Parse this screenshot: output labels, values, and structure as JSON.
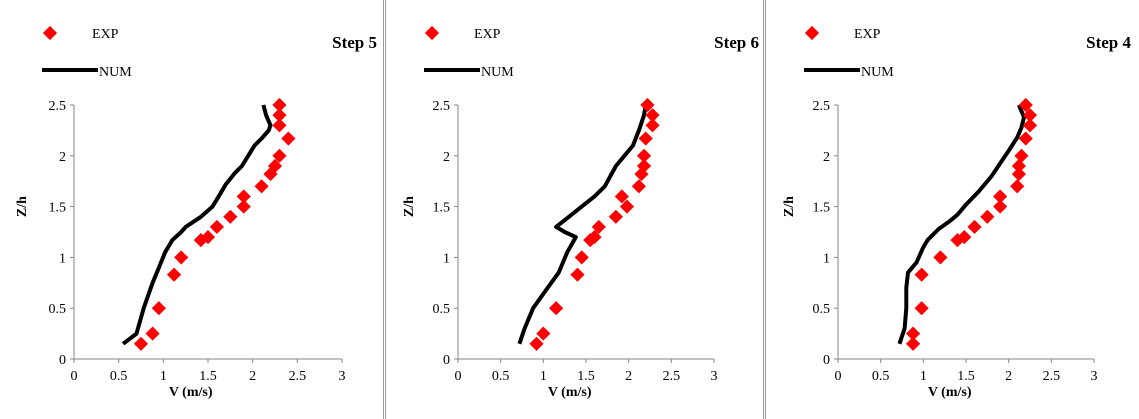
{
  "chart_data": [
    {
      "type": "scatter",
      "title": "Step 5",
      "xlabel": "V (m/s)",
      "ylabel": "Z/h",
      "xlim": [
        0,
        3
      ],
      "ylim": [
        0,
        2.5
      ],
      "xticks": [
        "0",
        "0.5",
        "1",
        "1.5",
        "2",
        "2.5",
        "3"
      ],
      "yticks": [
        "0",
        "0.5",
        "1",
        "1.5",
        "2",
        "2.5"
      ],
      "legend": {
        "placement": "top-left",
        "entries": [
          "EXP",
          "NUM"
        ]
      },
      "series": [
        {
          "name": "EXP",
          "kind": "marker",
          "color": "#ff0000",
          "points": [
            [
              0.75,
              0.15
            ],
            [
              0.88,
              0.25
            ],
            [
              0.95,
              0.5
            ],
            [
              1.12,
              0.83
            ],
            [
              1.2,
              1.0
            ],
            [
              1.42,
              1.17
            ],
            [
              1.5,
              1.2
            ],
            [
              1.6,
              1.3
            ],
            [
              1.75,
              1.4
            ],
            [
              1.9,
              1.5
            ],
            [
              1.9,
              1.6
            ],
            [
              2.1,
              1.7
            ],
            [
              2.2,
              1.82
            ],
            [
              2.25,
              1.9
            ],
            [
              2.3,
              2.0
            ],
            [
              2.4,
              2.17
            ],
            [
              2.3,
              2.3
            ],
            [
              2.3,
              2.4
            ],
            [
              2.3,
              2.5
            ]
          ]
        },
        {
          "name": "NUM",
          "kind": "line",
          "color": "#000000",
          "points": [
            [
              0.55,
              0.15
            ],
            [
              0.7,
              0.25
            ],
            [
              0.78,
              0.5
            ],
            [
              0.88,
              0.75
            ],
            [
              0.95,
              0.9
            ],
            [
              1.02,
              1.05
            ],
            [
              1.1,
              1.17
            ],
            [
              1.2,
              1.25
            ],
            [
              1.25,
              1.3
            ],
            [
              1.42,
              1.4
            ],
            [
              1.55,
              1.5
            ],
            [
              1.62,
              1.6
            ],
            [
              1.7,
              1.72
            ],
            [
              1.8,
              1.83
            ],
            [
              1.88,
              1.9
            ],
            [
              1.95,
              2.0
            ],
            [
              2.02,
              2.1
            ],
            [
              2.1,
              2.17
            ],
            [
              2.18,
              2.25
            ],
            [
              2.2,
              2.3
            ],
            [
              2.15,
              2.4
            ],
            [
              2.12,
              2.5
            ]
          ]
        }
      ]
    },
    {
      "type": "scatter",
      "title": "Step 6",
      "xlabel": "V (m/s)",
      "ylabel": "Z/h",
      "xlim": [
        0,
        3
      ],
      "ylim": [
        0,
        2.5
      ],
      "xticks": [
        "0",
        "0.5",
        "1",
        "1.5",
        "2",
        "2.5",
        "3"
      ],
      "yticks": [
        "0",
        "0.5",
        "1",
        "1.5",
        "2",
        "2.5"
      ],
      "legend": {
        "placement": "top-left",
        "entries": [
          "EXP",
          "NUM"
        ]
      },
      "series": [
        {
          "name": "EXP",
          "kind": "marker",
          "color": "#ff0000",
          "points": [
            [
              0.92,
              0.15
            ],
            [
              1.0,
              0.25
            ],
            [
              1.15,
              0.5
            ],
            [
              1.4,
              0.83
            ],
            [
              1.45,
              1.0
            ],
            [
              1.55,
              1.17
            ],
            [
              1.6,
              1.2
            ],
            [
              1.65,
              1.3
            ],
            [
              1.85,
              1.4
            ],
            [
              1.98,
              1.5
            ],
            [
              1.92,
              1.6
            ],
            [
              2.12,
              1.7
            ],
            [
              2.15,
              1.82
            ],
            [
              2.18,
              1.9
            ],
            [
              2.18,
              2.0
            ],
            [
              2.2,
              2.17
            ],
            [
              2.28,
              2.3
            ],
            [
              2.28,
              2.4
            ],
            [
              2.22,
              2.5
            ]
          ]
        },
        {
          "name": "NUM",
          "kind": "line",
          "color": "#000000",
          "points": [
            [
              0.72,
              0.15
            ],
            [
              0.78,
              0.3
            ],
            [
              0.88,
              0.5
            ],
            [
              1.05,
              0.7
            ],
            [
              1.18,
              0.85
            ],
            [
              1.28,
              1.05
            ],
            [
              1.38,
              1.2
            ],
            [
              1.25,
              1.25
            ],
            [
              1.15,
              1.3
            ],
            [
              1.3,
              1.4
            ],
            [
              1.45,
              1.5
            ],
            [
              1.6,
              1.6
            ],
            [
              1.72,
              1.7
            ],
            [
              1.85,
              1.9
            ],
            [
              1.95,
              2.0
            ],
            [
              2.05,
              2.1
            ],
            [
              2.12,
              2.25
            ],
            [
              2.18,
              2.4
            ],
            [
              2.2,
              2.5
            ]
          ]
        }
      ]
    },
    {
      "type": "scatter",
      "title": "Step 4",
      "xlabel": "V (m/s)",
      "ylabel": "Z/h",
      "xlim": [
        0,
        3
      ],
      "ylim": [
        0,
        2.5
      ],
      "xticks": [
        "0",
        "0.5",
        "1",
        "1.5",
        "2",
        "2.5",
        "3"
      ],
      "yticks": [
        "0",
        "0.5",
        "1",
        "1.5",
        "2",
        "2.5"
      ],
      "legend": {
        "placement": "top-left",
        "entries": [
          "EXP",
          "NUM"
        ]
      },
      "series": [
        {
          "name": "EXP",
          "kind": "marker",
          "color": "#ff0000",
          "points": [
            [
              0.88,
              0.15
            ],
            [
              0.88,
              0.25
            ],
            [
              0.98,
              0.5
            ],
            [
              0.98,
              0.83
            ],
            [
              1.2,
              1.0
            ],
            [
              1.4,
              1.17
            ],
            [
              1.48,
              1.2
            ],
            [
              1.6,
              1.3
            ],
            [
              1.75,
              1.4
            ],
            [
              1.9,
              1.5
            ],
            [
              1.9,
              1.6
            ],
            [
              2.1,
              1.7
            ],
            [
              2.12,
              1.82
            ],
            [
              2.12,
              1.9
            ],
            [
              2.15,
              2.0
            ],
            [
              2.2,
              2.17
            ],
            [
              2.25,
              2.3
            ],
            [
              2.25,
              2.4
            ],
            [
              2.2,
              2.5
            ]
          ]
        },
        {
          "name": "NUM",
          "kind": "line",
          "color": "#000000",
          "points": [
            [
              0.72,
              0.15
            ],
            [
              0.78,
              0.3
            ],
            [
              0.8,
              0.5
            ],
            [
              0.8,
              0.7
            ],
            [
              0.82,
              0.85
            ],
            [
              0.92,
              0.95
            ],
            [
              1.0,
              1.1
            ],
            [
              1.05,
              1.17
            ],
            [
              1.18,
              1.28
            ],
            [
              1.3,
              1.35
            ],
            [
              1.4,
              1.42
            ],
            [
              1.5,
              1.52
            ],
            [
              1.65,
              1.65
            ],
            [
              1.8,
              1.8
            ],
            [
              1.92,
              1.95
            ],
            [
              2.0,
              2.05
            ],
            [
              2.1,
              2.18
            ],
            [
              2.15,
              2.28
            ],
            [
              2.18,
              2.38
            ],
            [
              2.12,
              2.5
            ]
          ]
        }
      ]
    }
  ]
}
